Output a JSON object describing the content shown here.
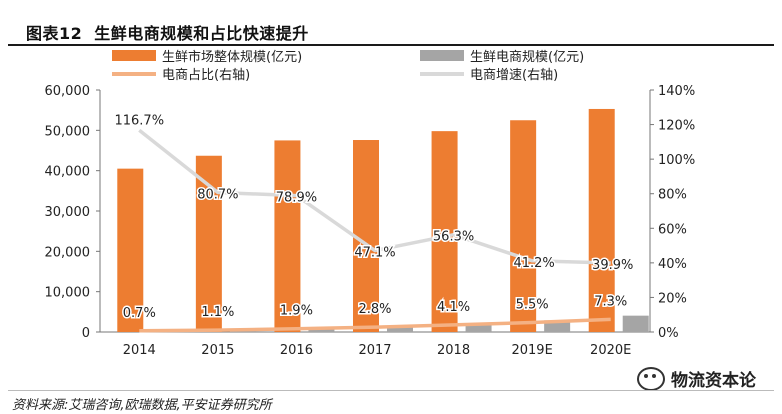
{
  "figure": {
    "label": "图表12",
    "title": "生鲜电商规模和占比快速提升",
    "source": "资料来源:艾瑞咨询,欧瑞数据,平安证券研究所",
    "watermark": "物流资本论"
  },
  "chart_data": {
    "type": "bar",
    "categories": [
      "2014",
      "2015",
      "2016",
      "2017",
      "2018",
      "2019E",
      "2020E"
    ],
    "series": [
      {
        "name": "生鲜市场整体规模(亿元)",
        "kind": "bar",
        "axis": "left",
        "color": "#ed7d31",
        "values": [
          40500,
          43700,
          47500,
          47600,
          49800,
          52500,
          55300
        ]
      },
      {
        "name": "生鲜电商规模(亿元)",
        "kind": "bar",
        "axis": "left",
        "color": "#a5a5a5",
        "values": [
          290,
          480,
          900,
          1330,
          2040,
          2890,
          4050
        ]
      },
      {
        "name": "电商占比(右轴)",
        "kind": "line",
        "axis": "right",
        "color": "#f4b183",
        "values": [
          0.7,
          1.1,
          1.9,
          2.8,
          4.1,
          5.5,
          7.3
        ],
        "labels": [
          "0.7%",
          "1.1%",
          "1.9%",
          "2.8%",
          "4.1%",
          "5.5%",
          "7.3%"
        ]
      },
      {
        "name": "电商增速(右轴)",
        "kind": "line",
        "axis": "right",
        "color": "#d9d9d9",
        "values": [
          116.7,
          80.7,
          78.9,
          47.1,
          56.3,
          41.2,
          39.9
        ],
        "labels": [
          "116.7%",
          "80.7%",
          "78.9%",
          "47.1%",
          "56.3%",
          "41.2%",
          "39.9%"
        ]
      }
    ],
    "y_left": {
      "lim": [
        0,
        60000
      ],
      "ticks": [
        "0",
        "10,000",
        "20,000",
        "30,000",
        "40,000",
        "50,000",
        "60,000"
      ]
    },
    "y_right": {
      "lim": [
        0,
        140
      ],
      "ticks": [
        "0%",
        "20%",
        "40%",
        "60%",
        "80%",
        "100%",
        "120%",
        "140%"
      ]
    },
    "legend": {
      "position": "top"
    },
    "grid": false
  }
}
